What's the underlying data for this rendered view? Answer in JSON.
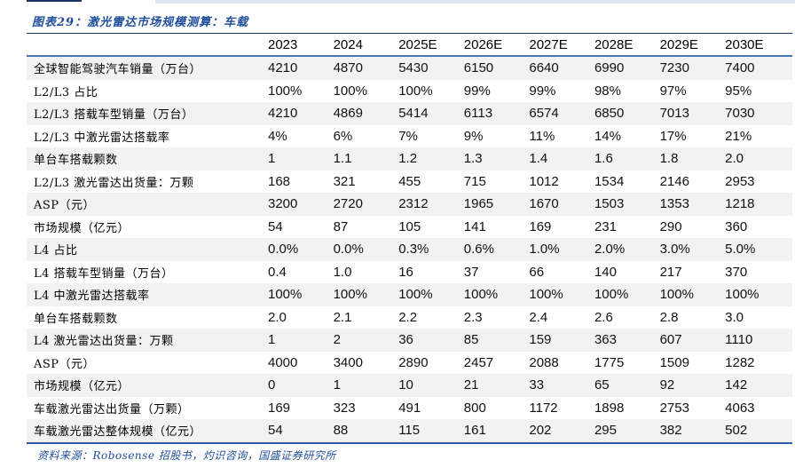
{
  "figure": {
    "title": "图表29：激光雷达市场规模测算：车载",
    "source": "资料来源：Robosense 招股书，灼识咨询，国盛证券研究所"
  },
  "table": {
    "columns": [
      "2023",
      "2024",
      "2025E",
      "2026E",
      "2027E",
      "2028E",
      "2029E",
      "2030E"
    ],
    "rows": [
      {
        "label": "全球智能驾驶汽车销量（万台）",
        "values": [
          "4210",
          "4870",
          "5430",
          "6150",
          "6640",
          "6990",
          "7230",
          "7400"
        ]
      },
      {
        "label": "L2/L3 占比",
        "values": [
          "100%",
          "100%",
          "100%",
          "99%",
          "99%",
          "98%",
          "97%",
          "95%"
        ]
      },
      {
        "label": "L2/L3 搭载车型销量（万台）",
        "values": [
          "4210",
          "4869",
          "5414",
          "6113",
          "6574",
          "6850",
          "7013",
          "7030"
        ]
      },
      {
        "label": "L2/L3 中激光雷达搭载率",
        "values": [
          "4%",
          "6%",
          "7%",
          "9%",
          "11%",
          "14%",
          "17%",
          "21%"
        ]
      },
      {
        "label": "单台车搭载颗数",
        "values": [
          "1",
          "1.1",
          "1.2",
          "1.3",
          "1.4",
          "1.6",
          "1.8",
          "2.0"
        ]
      },
      {
        "label": "L2/L3 激光雷达出货量：万颗",
        "values": [
          "168",
          "321",
          "455",
          "715",
          "1012",
          "1534",
          "2146",
          "2953"
        ]
      },
      {
        "label": "ASP（元）",
        "values": [
          "3200",
          "2720",
          "2312",
          "1965",
          "1670",
          "1503",
          "1353",
          "1218"
        ]
      },
      {
        "label": "市场规模（亿元）",
        "values": [
          "54",
          "87",
          "105",
          "141",
          "169",
          "231",
          "290",
          "360"
        ]
      },
      {
        "label": "L4 占比",
        "values": [
          "0.0%",
          "0.0%",
          "0.3%",
          "0.6%",
          "1.0%",
          "2.0%",
          "3.0%",
          "5.0%"
        ]
      },
      {
        "label": "L4 搭载车型销量（万台）",
        "values": [
          "0.4",
          "1.0",
          "16",
          "37",
          "66",
          "140",
          "217",
          "370"
        ]
      },
      {
        "label": "L4 中激光雷达搭载率",
        "values": [
          "100%",
          "100%",
          "100%",
          "100%",
          "100%",
          "100%",
          "100%",
          "100%"
        ]
      },
      {
        "label": "单台车搭载颗数",
        "values": [
          "2.0",
          "2.1",
          "2.2",
          "2.3",
          "2.4",
          "2.6",
          "2.8",
          "3.0"
        ]
      },
      {
        "label": "L4 激光雷达出货量：万颗",
        "values": [
          "1",
          "2",
          "36",
          "85",
          "159",
          "363",
          "607",
          "1110"
        ]
      },
      {
        "label": "ASP（元）",
        "values": [
          "4000",
          "3400",
          "2890",
          "2457",
          "2088",
          "1775",
          "1509",
          "1282"
        ]
      },
      {
        "label": "市场规模（亿元）",
        "values": [
          "0",
          "1",
          "10",
          "21",
          "33",
          "65",
          "92",
          "142"
        ]
      },
      {
        "label": "车载激光雷达出货量（万颗）",
        "values": [
          "169",
          "323",
          "491",
          "800",
          "1172",
          "1898",
          "2753",
          "4063"
        ]
      },
      {
        "label": "车载激光雷达整体规模（亿元）",
        "values": [
          "54",
          "88",
          "115",
          "161",
          "202",
          "295",
          "382",
          "502"
        ]
      }
    ]
  },
  "colors": {
    "title_blue": "#1e4d9b",
    "title_underline": "#17365d",
    "header_rule": "#4a74ad",
    "source_rule": "#2e5aa8",
    "stripe": "#f2f2f2",
    "top_band": "#dce6f1"
  }
}
